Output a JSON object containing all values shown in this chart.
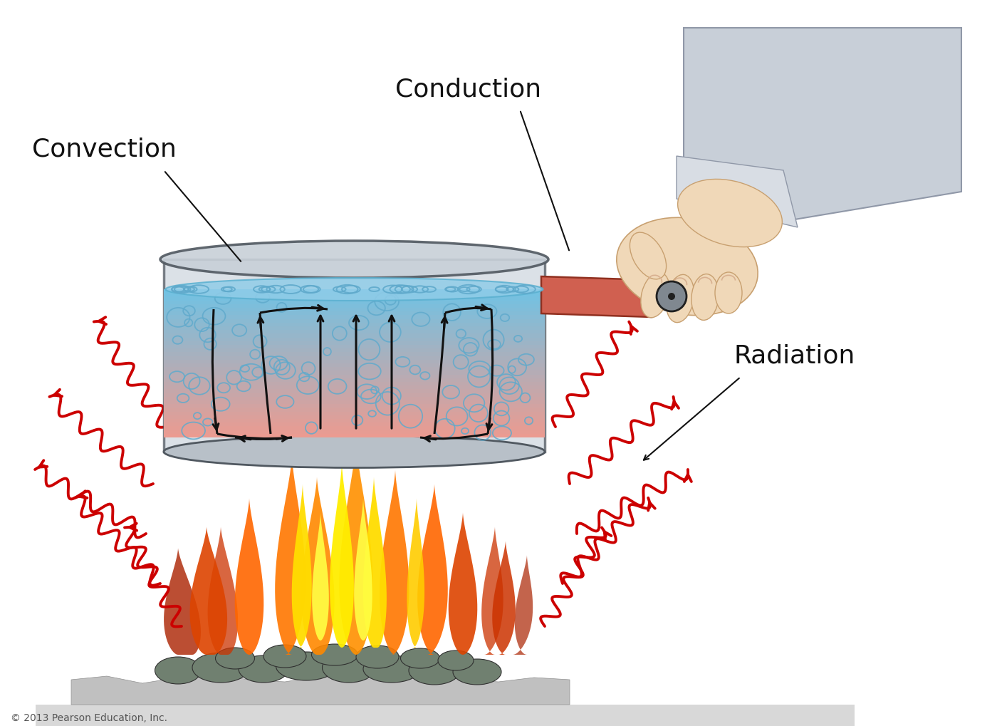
{
  "copyright": "© 2013 Pearson Education, Inc.",
  "labels": {
    "convection": "Convection",
    "conduction": "Conduction",
    "radiation": "Radiation"
  },
  "colors": {
    "background": "#ffffff",
    "pot_wall": "#c0c8d0",
    "pot_edge": "#505860",
    "water_top_color": "#80c8e8",
    "water_bottom_color": "#e8a898",
    "bubble_edge": "#60aacc",
    "radiation_arrow": "#cc0000",
    "handle": "#d06050",
    "handle_edge": "#903020",
    "ground_fill": "#d0d0d0",
    "ground_edge": "#a0a0a0",
    "coal_fill": "#708070",
    "coal_edge": "#303030",
    "label_line": "#111111",
    "conv_arrow": "#111111",
    "hand_skin": "#f0d8b8",
    "hand_edge": "#c8a070",
    "sleeve_fill": "#c8cfd8",
    "sleeve_edge": "#9098a8",
    "knob_fill": "#606060",
    "knob_edge": "#202020"
  }
}
